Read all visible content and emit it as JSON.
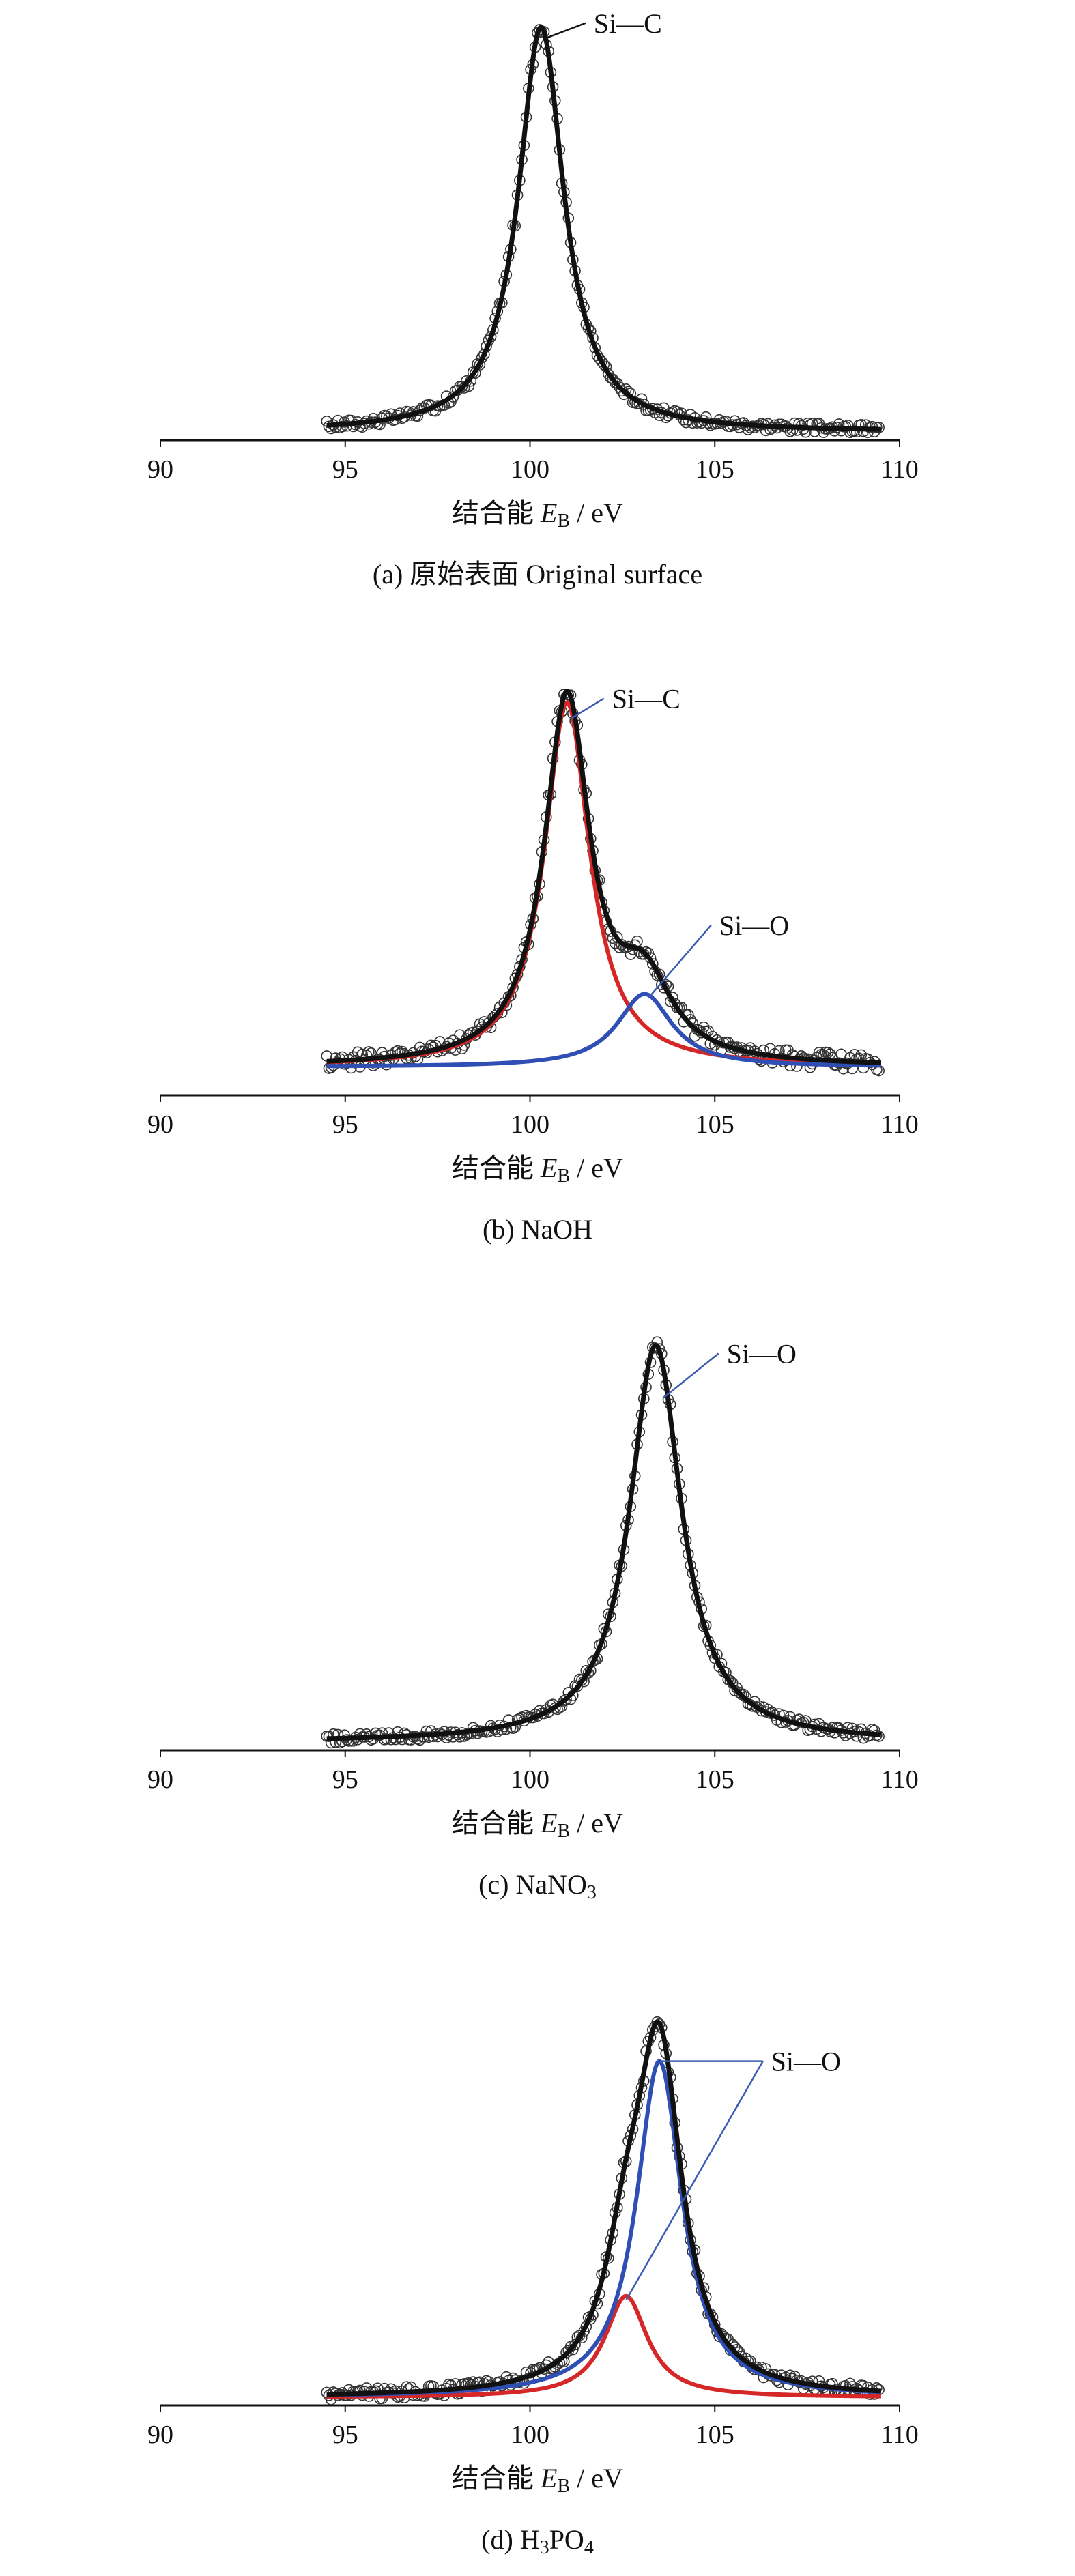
{
  "chart_data": [
    {
      "type": "line",
      "id": "a",
      "caption": "(a) 原始表面 Original surface",
      "xlabel_cn": "结合能",
      "xlabel_var": "E",
      "xlabel_sub": "B",
      "xlabel_unit": " / eV",
      "xlim": [
        90,
        110
      ],
      "xticks": [
        90,
        95,
        100,
        105,
        110
      ],
      "data_range": [
        94.5,
        109.5
      ],
      "ylim": [
        0,
        1.05
      ],
      "baseline": 0.02,
      "scatter_noise": 0.012,
      "series": [
        {
          "kind": "envelope",
          "color": "#111111",
          "peaks": [
            {
              "center": 100.3,
              "amp": 1.0,
              "w": 0.75
            }
          ]
        }
      ],
      "annotations": [
        {
          "text": "Si—C",
          "peak_x": 100.35,
          "peak_y": 0.99,
          "label_x": 101.5,
          "label_y": 1.03,
          "line_color": "#111111"
        }
      ]
    },
    {
      "type": "line",
      "id": "b",
      "caption": "(b) NaOH",
      "xlabel_cn": "结合能",
      "xlabel_var": "E",
      "xlabel_sub": "B",
      "xlabel_unit": " / eV",
      "xlim": [
        90,
        110
      ],
      "xticks": [
        90,
        95,
        100,
        105,
        110
      ],
      "data_range": [
        94.5,
        109.5
      ],
      "ylim": [
        0,
        1.05
      ],
      "baseline": 0.07,
      "scatter_noise": 0.02,
      "series": [
        {
          "kind": "component",
          "color": "#d62728",
          "peaks": [
            {
              "center": 101.0,
              "amp": 0.9,
              "w": 0.75
            }
          ]
        },
        {
          "kind": "component",
          "color": "#2f4fb5",
          "peaks": [
            {
              "center": 103.1,
              "amp": 0.18,
              "w": 0.9
            }
          ]
        },
        {
          "kind": "envelope",
          "color": "#111111",
          "peaks": [
            {
              "center": 101.0,
              "amp": 0.9,
              "w": 0.75
            },
            {
              "center": 103.1,
              "amp": 0.18,
              "w": 0.9
            }
          ]
        }
      ],
      "annotations": [
        {
          "text": "Si—C",
          "peak_x": 101.1,
          "peak_y": 0.93,
          "label_x": 102.0,
          "label_y": 0.98,
          "line_color": "#3c5bb0"
        },
        {
          "text": "Si—O",
          "peak_x": 103.2,
          "peak_y": 0.24,
          "label_x": 104.9,
          "label_y": 0.42,
          "line_color": "#3c5bb0"
        }
      ]
    },
    {
      "type": "line",
      "id": "c",
      "caption": "(c)  NaNO",
      "caption_sub": "3",
      "xlabel_cn": "结合能",
      "xlabel_var": "E",
      "xlabel_sub": "B",
      "xlabel_unit": " / eV",
      "xlim": [
        90,
        110
      ],
      "xticks": [
        90,
        95,
        100,
        105,
        110
      ],
      "data_range": [
        94.5,
        109.5
      ],
      "ylim": [
        0,
        1.05
      ],
      "baseline": 0.02,
      "scatter_noise": 0.012,
      "series": [
        {
          "kind": "envelope",
          "color": "#111111",
          "peaks": [
            {
              "center": 103.4,
              "amp": 0.98,
              "w": 0.85
            }
          ]
        }
      ],
      "annotations": [
        {
          "text": "Si—O",
          "peak_x": 103.6,
          "peak_y": 0.87,
          "label_x": 105.1,
          "label_y": 0.98,
          "line_color": "#3c5bb0"
        }
      ]
    },
    {
      "type": "line",
      "id": "d",
      "caption": "(d) H",
      "caption_sub": "3",
      "caption_mid": "PO",
      "caption_sub2": "4",
      "xlabel_cn": "结合能",
      "xlabel_var": "E",
      "xlabel_sub": "B",
      "xlabel_unit": " / eV",
      "xlim": [
        90,
        110
      ],
      "xticks": [
        90,
        95,
        100,
        105,
        110
      ],
      "data_range": [
        94.5,
        109.5
      ],
      "ylim": [
        0,
        1.05
      ],
      "baseline": 0.02,
      "scatter_noise": 0.014,
      "series": [
        {
          "kind": "component",
          "color": "#d62728",
          "peaks": [
            {
              "center": 102.6,
              "amp": 0.25,
              "w": 0.7
            }
          ]
        },
        {
          "kind": "component",
          "color": "#2f4fb5",
          "peaks": [
            {
              "center": 103.5,
              "amp": 0.83,
              "w": 0.75
            }
          ]
        },
        {
          "kind": "envelope",
          "color": "#111111",
          "peaks": [
            {
              "center": 102.6,
              "amp": 0.25,
              "w": 0.7
            },
            {
              "center": 103.5,
              "amp": 0.83,
              "w": 0.75
            }
          ]
        }
      ],
      "annotations": [
        {
          "text": "Si—O",
          "peak_x": 103.55,
          "peak_y": 0.85,
          "label_x": 106.3,
          "label_y": 0.85,
          "line_color": "#3c5bb0",
          "noText": false
        },
        {
          "text": "Si—O",
          "peak_x": 102.6,
          "peak_y": 0.26,
          "label_x": 106.3,
          "label_y": 0.85,
          "line_color": "#3c5bb0",
          "noText": true
        }
      ]
    }
  ]
}
